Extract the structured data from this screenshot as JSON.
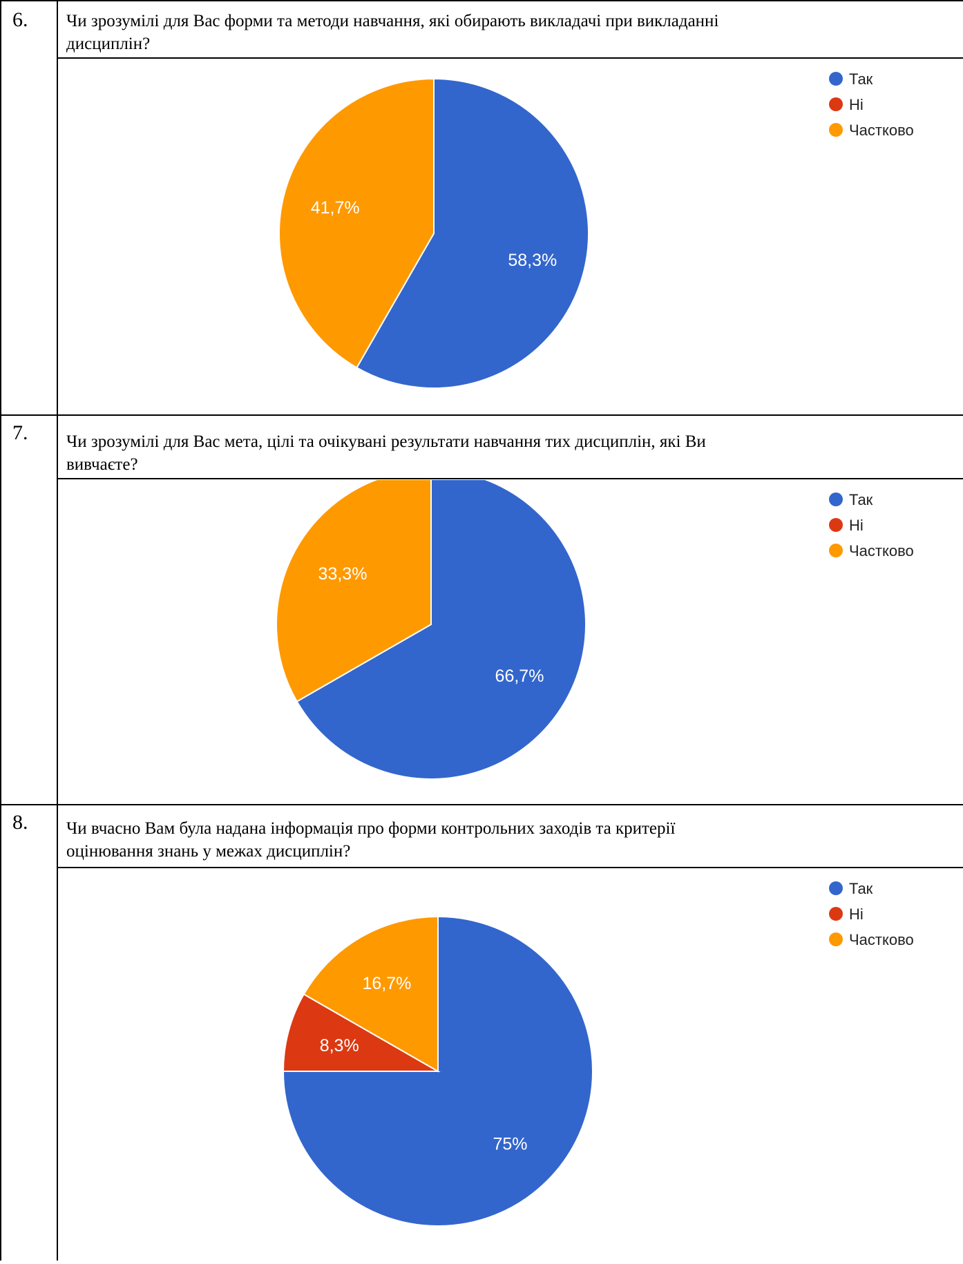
{
  "colors": {
    "yes": "#3366cc",
    "no": "#dc3912",
    "partial": "#ff9900",
    "label_text": "#ffffff",
    "legend_text": "#222222"
  },
  "questions": [
    {
      "number": "6.",
      "text_line1": "Чи зрозумілі для Вас форми та методи навчання, які обирають викладачі при викладанні",
      "text_line2": "дисциплін?",
      "chart_data": {
        "type": "pie",
        "legend_placement": "top-right",
        "slices": [
          {
            "label": "Так",
            "value": 58.3,
            "display": "58,3%",
            "color": "#3366cc"
          },
          {
            "label": "Ні",
            "value": 0,
            "display": "",
            "color": "#dc3912"
          },
          {
            "label": "Частково",
            "value": 41.7,
            "display": "41,7%",
            "color": "#ff9900"
          }
        ]
      }
    },
    {
      "number": "7.",
      "text_line1": "Чи зрозумілі для Вас мета, цілі та очікувані результати навчання тих дисциплін, які Ви",
      "text_line2": "вивчаєте?",
      "chart_data": {
        "type": "pie",
        "legend_placement": "top-right",
        "slices": [
          {
            "label": "Так",
            "value": 66.7,
            "display": "66,7%",
            "color": "#3366cc"
          },
          {
            "label": "Ні",
            "value": 0,
            "display": "",
            "color": "#dc3912"
          },
          {
            "label": "Частково",
            "value": 33.3,
            "display": "33,3%",
            "color": "#ff9900"
          }
        ]
      }
    },
    {
      "number": "8.",
      "text_line1": "Чи вчасно Вам була надана інформація про форми контрольних заходів та критерії",
      "text_line2": "оцінювання знань у межах дисциплін?",
      "chart_data": {
        "type": "pie",
        "legend_placement": "top-right",
        "slices": [
          {
            "label": "Так",
            "value": 75,
            "display": "75%",
            "color": "#3366cc"
          },
          {
            "label": "Ні",
            "value": 8.3,
            "display": "8,3%",
            "color": "#dc3912"
          },
          {
            "label": "Частково",
            "value": 16.7,
            "display": "16,7%",
            "color": "#ff9900"
          }
        ]
      }
    }
  ]
}
